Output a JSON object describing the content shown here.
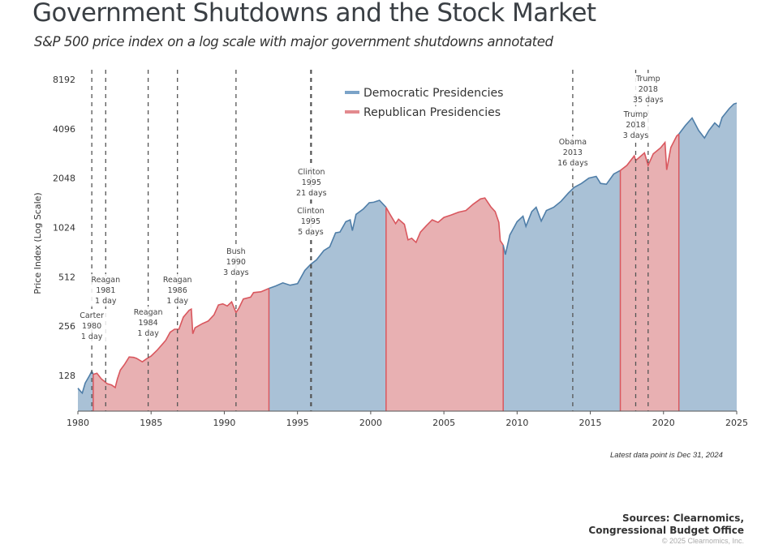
{
  "header": {
    "title": "Government Shutdowns and the Stock Market",
    "subtitle": "S&P 500 price index on a log scale with major government shutdowns annotated"
  },
  "footer": {
    "note": "Latest data point is Dec 31, 2024",
    "sources_line1": "Sources: Clearnomics,",
    "sources_line2": "Congressional Budget Office",
    "copyright": "© 2025 Clearnomics, Inc."
  },
  "chart_data": {
    "type": "area",
    "title": "Government Shutdowns and the Stock Market",
    "subtitle": "S&P 500 price index on a log scale with major government shutdowns annotated",
    "xlabel": "",
    "ylabel": "Price Index (Log Scale)",
    "yscale": "log2",
    "xlim": [
      1980,
      2025
    ],
    "ylim": [
      64,
      8192
    ],
    "x_ticks": [
      "1980",
      "1985",
      "1990",
      "1995",
      "2000",
      "2005",
      "2010",
      "2015",
      "2020",
      "2025"
    ],
    "y_ticks": [
      "128",
      "256",
      "512",
      "1024",
      "2048",
      "4096",
      "8192"
    ],
    "grid": false,
    "legend_position": "top-center",
    "colors": {
      "democratic_line": "#4f7ea8",
      "democratic_fill": "#a9c1d6",
      "republican_line": "#d9575e",
      "republican_fill": "#e8b0b2"
    },
    "series": [
      {
        "name": "Democratic Presidencies",
        "color": "#4f7ea8"
      },
      {
        "name": "Republican Presidencies",
        "color": "#d9575e"
      }
    ],
    "presidencies": [
      {
        "party": "D",
        "start": 1980.0,
        "end": 1981.05
      },
      {
        "party": "R",
        "start": 1981.05,
        "end": 1993.05
      },
      {
        "party": "D",
        "start": 1993.05,
        "end": 2001.05
      },
      {
        "party": "R",
        "start": 2001.05,
        "end": 2009.05
      },
      {
        "party": "D",
        "start": 2009.05,
        "end": 2017.05
      },
      {
        "party": "R",
        "start": 2017.05,
        "end": 2021.05
      },
      {
        "party": "D",
        "start": 2021.05,
        "end": 2025.0
      }
    ],
    "points": [
      [
        1980.0,
        107
      ],
      [
        1980.2,
        102
      ],
      [
        1980.3,
        100
      ],
      [
        1980.5,
        115
      ],
      [
        1980.8,
        128
      ],
      [
        1980.95,
        136
      ],
      [
        1981.05,
        130
      ],
      [
        1981.3,
        132
      ],
      [
        1981.6,
        122
      ],
      [
        1981.8,
        118
      ],
      [
        1982.0,
        114
      ],
      [
        1982.3,
        112
      ],
      [
        1982.55,
        108
      ],
      [
        1982.7,
        122
      ],
      [
        1982.9,
        138
      ],
      [
        1983.2,
        150
      ],
      [
        1983.5,
        166
      ],
      [
        1983.8,
        165
      ],
      [
        1984.0,
        163
      ],
      [
        1984.4,
        155
      ],
      [
        1984.7,
        162
      ],
      [
        1985.0,
        168
      ],
      [
        1985.4,
        182
      ],
      [
        1985.8,
        200
      ],
      [
        1986.0,
        210
      ],
      [
        1986.3,
        235
      ],
      [
        1986.6,
        245
      ],
      [
        1986.9,
        245
      ],
      [
        1987.2,
        290
      ],
      [
        1987.6,
        320
      ],
      [
        1987.75,
        325
      ],
      [
        1987.85,
        230
      ],
      [
        1988.0,
        250
      ],
      [
        1988.5,
        265
      ],
      [
        1988.9,
        275
      ],
      [
        1989.3,
        300
      ],
      [
        1989.6,
        345
      ],
      [
        1989.9,
        350
      ],
      [
        1990.2,
        340
      ],
      [
        1990.5,
        360
      ],
      [
        1990.8,
        310
      ],
      [
        1991.0,
        330
      ],
      [
        1991.3,
        375
      ],
      [
        1991.8,
        385
      ],
      [
        1992.0,
        410
      ],
      [
        1992.5,
        415
      ],
      [
        1993.05,
        435
      ],
      [
        1993.5,
        450
      ],
      [
        1994.0,
        470
      ],
      [
        1994.5,
        455
      ],
      [
        1995.0,
        465
      ],
      [
        1995.5,
        560
      ],
      [
        1995.9,
        610
      ],
      [
        1996.3,
        650
      ],
      [
        1996.8,
        740
      ],
      [
        1997.2,
        780
      ],
      [
        1997.6,
        950
      ],
      [
        1997.9,
        960
      ],
      [
        1998.3,
        1110
      ],
      [
        1998.6,
        1140
      ],
      [
        1998.75,
        980
      ],
      [
        1999.0,
        1230
      ],
      [
        1999.5,
        1330
      ],
      [
        1999.9,
        1450
      ],
      [
        2000.2,
        1460
      ],
      [
        2000.6,
        1500
      ],
      [
        2001.05,
        1360
      ],
      [
        2001.3,
        1240
      ],
      [
        2001.7,
        1080
      ],
      [
        2001.9,
        1150
      ],
      [
        2002.3,
        1070
      ],
      [
        2002.55,
        860
      ],
      [
        2002.8,
        880
      ],
      [
        2003.1,
        830
      ],
      [
        2003.4,
        960
      ],
      [
        2003.8,
        1050
      ],
      [
        2004.2,
        1140
      ],
      [
        2004.6,
        1100
      ],
      [
        2005.0,
        1180
      ],
      [
        2005.5,
        1220
      ],
      [
        2006.0,
        1270
      ],
      [
        2006.5,
        1300
      ],
      [
        2007.0,
        1420
      ],
      [
        2007.5,
        1530
      ],
      [
        2007.8,
        1550
      ],
      [
        2008.2,
        1370
      ],
      [
        2008.5,
        1280
      ],
      [
        2008.75,
        1100
      ],
      [
        2008.85,
        850
      ],
      [
        2009.05,
        800
      ],
      [
        2009.2,
        700
      ],
      [
        2009.5,
        920
      ],
      [
        2010.0,
        1110
      ],
      [
        2010.4,
        1200
      ],
      [
        2010.6,
        1040
      ],
      [
        2011.0,
        1280
      ],
      [
        2011.3,
        1360
      ],
      [
        2011.65,
        1120
      ],
      [
        2012.0,
        1300
      ],
      [
        2012.5,
        1360
      ],
      [
        2013.0,
        1480
      ],
      [
        2013.5,
        1660
      ],
      [
        2013.9,
        1800
      ],
      [
        2014.4,
        1900
      ],
      [
        2014.9,
        2050
      ],
      [
        2015.4,
        2100
      ],
      [
        2015.7,
        1900
      ],
      [
        2016.1,
        1880
      ],
      [
        2016.6,
        2170
      ],
      [
        2017.05,
        2280
      ],
      [
        2017.5,
        2450
      ],
      [
        2018.0,
        2800
      ],
      [
        2018.1,
        2620
      ],
      [
        2018.7,
        2920
      ],
      [
        2018.95,
        2450
      ],
      [
        2019.3,
        2880
      ],
      [
        2019.8,
        3140
      ],
      [
        2020.1,
        3380
      ],
      [
        2020.22,
        2300
      ],
      [
        2020.5,
        3150
      ],
      [
        2020.9,
        3700
      ],
      [
        2021.05,
        3800
      ],
      [
        2021.5,
        4300
      ],
      [
        2021.95,
        4770
      ],
      [
        2022.4,
        4000
      ],
      [
        2022.8,
        3600
      ],
      [
        2023.1,
        4000
      ],
      [
        2023.5,
        4450
      ],
      [
        2023.8,
        4200
      ],
      [
        2024.0,
        4800
      ],
      [
        2024.5,
        5460
      ],
      [
        2024.8,
        5800
      ],
      [
        2025.0,
        5880
      ]
    ],
    "annotations": [
      {
        "x": 1980.95,
        "lines": [
          "Carter",
          "1980",
          "1 day"
        ]
      },
      {
        "x": 1981.9,
        "lines": [
          "Reagan",
          "1981",
          "1 day"
        ]
      },
      {
        "x": 1984.8,
        "lines": [
          "Reagan",
          "1984",
          "1 day"
        ]
      },
      {
        "x": 1986.8,
        "lines": [
          "Reagan",
          "1986",
          "1 day"
        ]
      },
      {
        "x": 1990.8,
        "lines": [
          "Bush",
          "1990",
          "3 days"
        ]
      },
      {
        "x": 1995.9,
        "lines": [
          "Clinton",
          "1995",
          "5 days"
        ]
      },
      {
        "x": 1995.95,
        "lines": [
          "Clinton",
          "1995",
          "21 days"
        ]
      },
      {
        "x": 2013.8,
        "lines": [
          "Obama",
          "2013",
          "16 days"
        ]
      },
      {
        "x": 2018.1,
        "lines": [
          "Trump",
          "2018",
          "3 days"
        ]
      },
      {
        "x": 2018.95,
        "lines": [
          "Trump",
          "2018",
          "35 days"
        ]
      }
    ]
  }
}
